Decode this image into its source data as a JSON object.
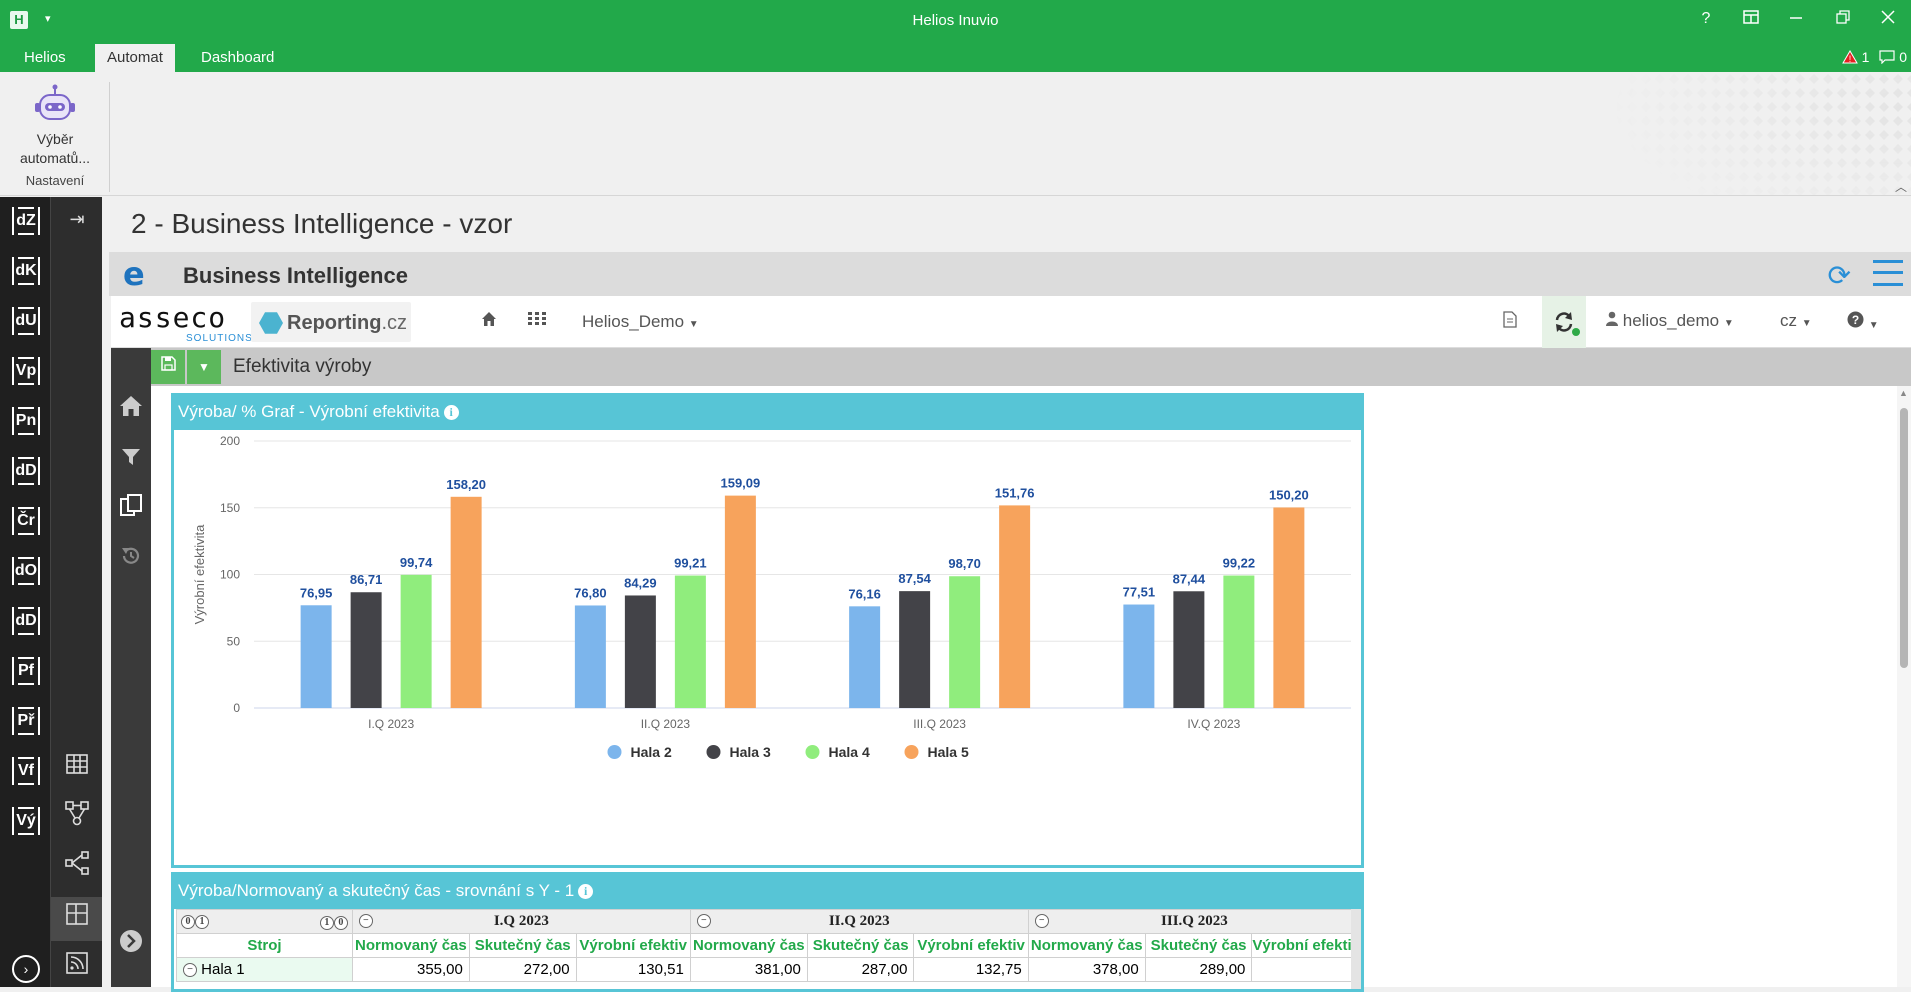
{
  "window": {
    "title": "Helios Inuvio",
    "app_icon": "H",
    "quick_access": "▾",
    "help": "?",
    "alerts": {
      "warning_count": "1",
      "message_count": "0"
    }
  },
  "menu": {
    "tabs": [
      "Helios",
      "Automat",
      "Dashboard"
    ],
    "active": "Automat"
  },
  "ribbon": {
    "button_label": "Výběr automatů...",
    "group_label": "Nastavení"
  },
  "left_nav": [
    "dZ",
    "dK",
    "dU",
    "Vp",
    "Pn",
    "dD",
    "Čr",
    "dO",
    "dD",
    "Pf",
    "Př",
    "Vf",
    "Vý"
  ],
  "page": {
    "title": "2 - Business Intelligence - vzor"
  },
  "bi": {
    "header_title": "Business Intelligence",
    "asseco_logo": "asseco",
    "asseco_sub": "SOLUTIONS",
    "reporting_logo": "Reporting",
    "reporting_suffix": ".cz",
    "database": "Helios_Demo",
    "user": "helios_demo",
    "language": "cz",
    "report_title": "Efektivita výroby"
  },
  "chart_panel": {
    "title": "Výroba/ % Graf - Výrobní efektivita"
  },
  "chart_data": {
    "type": "bar",
    "title": "Výroba/ % Graf - Výrobní efektivita",
    "ylabel": "Výrobní efektivita",
    "xlabel": "",
    "categories": [
      "I.Q 2023",
      "II.Q 2023",
      "III.Q 2023",
      "IV.Q 2023"
    ],
    "ylim": [
      0,
      200
    ],
    "yticks": [
      0,
      50,
      100,
      150,
      200
    ],
    "grid": true,
    "legend": "bottom",
    "series": [
      {
        "name": "Hala 2",
        "color": "#7cb5ec",
        "values": [
          76.95,
          76.8,
          76.16,
          77.51
        ],
        "labels": [
          "76,95",
          "76,80",
          "76,16",
          "77,51"
        ]
      },
      {
        "name": "Hala 3",
        "color": "#434348",
        "values": [
          86.71,
          84.29,
          87.54,
          87.44
        ],
        "labels": [
          "86,71",
          "84,29",
          "87,54",
          "87,44"
        ]
      },
      {
        "name": "Hala 4",
        "color": "#90ed7d",
        "values": [
          99.74,
          99.21,
          98.7,
          99.22
        ],
        "labels": [
          "99,74",
          "99,21",
          "98,70",
          "99,22"
        ]
      },
      {
        "name": "Hala 5",
        "color": "#f7a35c",
        "values": [
          158.2,
          159.09,
          151.76,
          150.2
        ],
        "labels": [
          "158,20",
          "159,09",
          "151,76",
          "150,20"
        ]
      }
    ]
  },
  "table_panel": {
    "title": "Výroba/Normovaný a skutečný čas - srovnání s Y - 1",
    "corner_left": [
      "0",
      "1"
    ],
    "corner_right": [
      "1",
      "0"
    ],
    "quarters": [
      "I.Q 2023",
      "II.Q 2023",
      "III.Q 2023"
    ],
    "row_header": "Stroj",
    "col_headers": [
      "Normovaný čas",
      "Skutečný čas",
      "Výrobní efektiv"
    ],
    "first_row": {
      "label": "Hala 1",
      "cells": [
        "355,00",
        "272,00",
        "130,51",
        "381,00",
        "287,00",
        "132,75",
        "378,00",
        "289,00",
        ""
      ]
    }
  }
}
